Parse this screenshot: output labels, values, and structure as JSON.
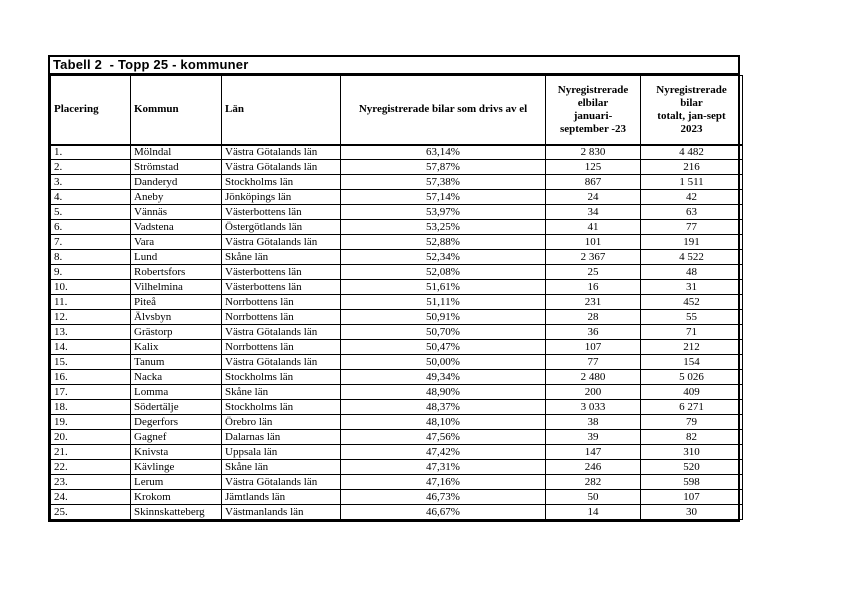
{
  "document": {
    "title": "Tabell 2  - Topp 25 - kommuner"
  },
  "table": {
    "headers": [
      "Placering",
      "Kommun",
      "Län",
      "Nyregistrerade bilar som drivs av el",
      "Nyregistrerade\nelbilar\njanuari-\nseptember -23",
      "Nyregistrerade\nbilar\ntotalt, jan-sept\n2023"
    ],
    "rows": [
      [
        "1.",
        "Mölndal",
        "Västra Götalands län",
        "63,14%",
        "2 830",
        "4 482"
      ],
      [
        "2.",
        "Strömstad",
        "Västra Götalands län",
        "57,87%",
        "125",
        "216"
      ],
      [
        "3.",
        "Danderyd",
        "Stockholms län",
        "57,38%",
        "867",
        "1 511"
      ],
      [
        "4.",
        "Aneby",
        "Jönköpings län",
        "57,14%",
        "24",
        "42"
      ],
      [
        "5.",
        "Vännäs",
        "Västerbottens län",
        "53,97%",
        "34",
        "63"
      ],
      [
        "6.",
        "Vadstena",
        "Östergötlands län",
        "53,25%",
        "41",
        "77"
      ],
      [
        "7.",
        "Vara",
        "Västra Götalands län",
        "52,88%",
        "101",
        "191"
      ],
      [
        "8.",
        "Lund",
        "Skåne län",
        "52,34%",
        "2 367",
        "4 522"
      ],
      [
        "9.",
        "Robertsfors",
        "Västerbottens län",
        "52,08%",
        "25",
        "48"
      ],
      [
        "10.",
        "Vilhelmina",
        "Västerbottens län",
        "51,61%",
        "16",
        "31"
      ],
      [
        "11.",
        "Piteå",
        "Norrbottens län",
        "51,11%",
        "231",
        "452"
      ],
      [
        "12.",
        "Älvsbyn",
        "Norrbottens län",
        "50,91%",
        "28",
        "55"
      ],
      [
        "13.",
        "Grästorp",
        "Västra Götalands län",
        "50,70%",
        "36",
        "71"
      ],
      [
        "14.",
        "Kalix",
        "Norrbottens län",
        "50,47%",
        "107",
        "212"
      ],
      [
        "15.",
        "Tanum",
        "Västra Götalands län",
        "50,00%",
        "77",
        "154"
      ],
      [
        "16.",
        "Nacka",
        "Stockholms län",
        "49,34%",
        "2 480",
        "5 026"
      ],
      [
        "17.",
        "Lomma",
        "Skåne län",
        "48,90%",
        "200",
        "409"
      ],
      [
        "18.",
        "Södertälje",
        "Stockholms län",
        "48,37%",
        "3 033",
        "6 271"
      ],
      [
        "19.",
        "Degerfors",
        "Örebro län",
        "48,10%",
        "38",
        "79"
      ],
      [
        "20.",
        "Gagnef",
        "Dalarnas län",
        "47,56%",
        "39",
        "82"
      ],
      [
        "21.",
        "Knivsta",
        "Uppsala län",
        "47,42%",
        "147",
        "310"
      ],
      [
        "22.",
        "Kävlinge",
        "Skåne län",
        "47,31%",
        "246",
        "520"
      ],
      [
        "23.",
        "Lerum",
        "Västra Götalands län",
        "47,16%",
        "282",
        "598"
      ],
      [
        "24.",
        "Krokom",
        "Jämtlands län",
        "46,73%",
        "50",
        "107"
      ],
      [
        "25.",
        "Skinnskatteberg",
        "Västmanlands län",
        "46,67%",
        "14",
        "30"
      ]
    ]
  }
}
